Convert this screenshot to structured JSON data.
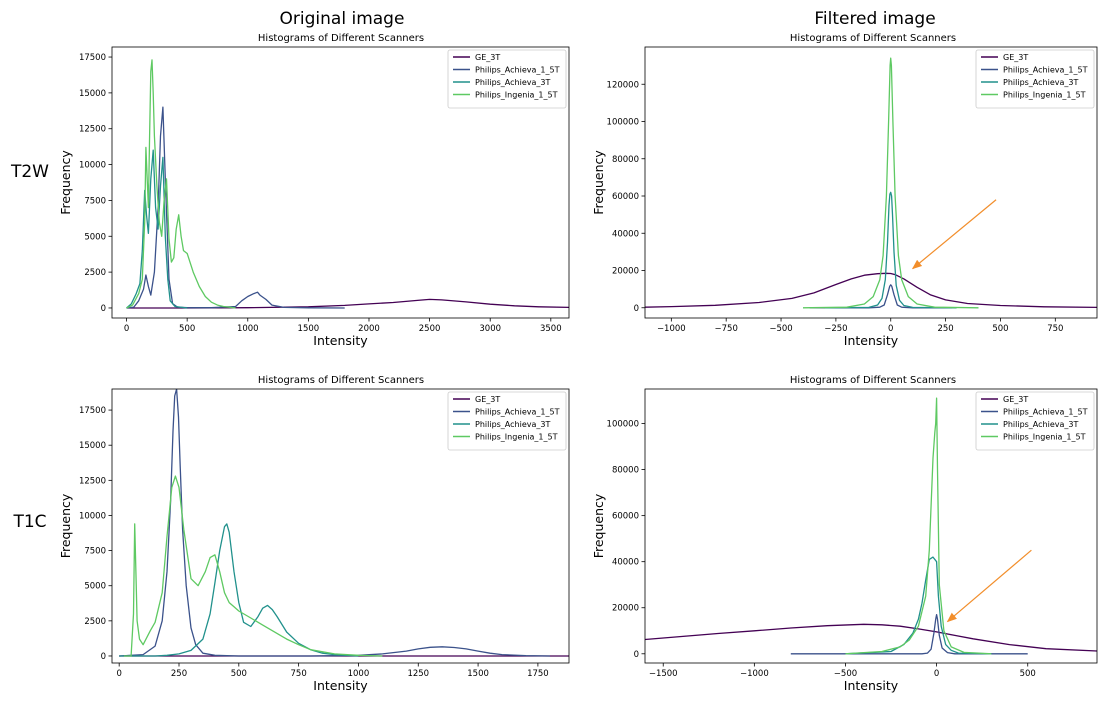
{
  "col_titles": [
    "Original image",
    "Filtered image"
  ],
  "row_labels": [
    "T2W",
    "T1C"
  ],
  "colors": {
    "GE_3T": "#440154",
    "Philips_Achieva_1_5T": "#3b528b",
    "Philips_Achieva_3T": "#21918c",
    "Philips_Ingenia_1_5T": "#5ec962",
    "arrow": "#f28e2b"
  },
  "chart_data": [
    {
      "type": "line",
      "title": "Histograms of Different Scanners",
      "xlabel": "Intensity",
      "ylabel": "Frequency",
      "xlim": [
        -120,
        3650
      ],
      "ylim": [
        -700,
        18200
      ],
      "xticks": [
        0,
        500,
        1000,
        1500,
        2000,
        2500,
        3000,
        3500
      ],
      "yticks": [
        0,
        2500,
        5000,
        7500,
        10000,
        12500,
        15000,
        17500
      ],
      "legend": [
        "GE_3T",
        "Philips_Achieva_1_5T",
        "Philips_Achieva_3T",
        "Philips_Ingenia_1_5T"
      ],
      "legend_position": "top-right",
      "series": [
        {
          "name": "GE_3T",
          "x": [
            0,
            500,
            1000,
            1500,
            1800,
            2000,
            2200,
            2400,
            2500,
            2600,
            2800,
            3000,
            3200,
            3400,
            3650
          ],
          "y": [
            0,
            0,
            20,
            80,
            180,
            280,
            380,
            530,
            600,
            560,
            420,
            260,
            150,
            80,
            40
          ]
        },
        {
          "name": "Philips_Achieva_1_5T",
          "x": [
            0,
            60,
            100,
            140,
            160,
            180,
            200,
            230,
            260,
            280,
            300,
            320,
            350,
            380,
            420,
            500,
            700,
            900,
            950,
            1000,
            1050,
            1080,
            1100,
            1150,
            1200,
            1300,
            1500,
            1800
          ],
          "y": [
            0,
            60,
            500,
            1300,
            2300,
            1500,
            900,
            2500,
            7000,
            12000,
            14000,
            9000,
            2000,
            300,
            60,
            20,
            20,
            100,
            500,
            800,
            1000,
            1100,
            900,
            600,
            200,
            40,
            10,
            0
          ]
        },
        {
          "name": "Philips_Achieva_3T",
          "x": [
            0,
            40,
            80,
            110,
            130,
            150,
            165,
            180,
            200,
            220,
            240,
            260,
            280,
            300,
            320,
            340,
            360,
            400,
            500
          ],
          "y": [
            0,
            300,
            1000,
            1700,
            4000,
            8200,
            6500,
            5200,
            9000,
            11000,
            7000,
            5500,
            8500,
            10500,
            5000,
            2000,
            500,
            100,
            0
          ]
        },
        {
          "name": "Philips_Ingenia_1_5T",
          "x": [
            0,
            50,
            100,
            130,
            150,
            160,
            170,
            180,
            190,
            200,
            210,
            220,
            230,
            250,
            270,
            290,
            310,
            330,
            350,
            370,
            390,
            410,
            430,
            450,
            470,
            500,
            550,
            600,
            650,
            700,
            750,
            800,
            850,
            900
          ],
          "y": [
            0,
            200,
            1000,
            2000,
            6000,
            11200,
            9000,
            7000,
            12000,
            16500,
            17300,
            15000,
            12000,
            8500,
            6000,
            5000,
            7500,
            9000,
            4800,
            3200,
            3500,
            5500,
            6500,
            5000,
            4000,
            3800,
            2500,
            1500,
            800,
            400,
            200,
            100,
            50,
            0
          ]
        }
      ]
    },
    {
      "type": "line",
      "title": "Histograms of Different Scanners",
      "xlabel": "Intensity",
      "ylabel": "Frequency",
      "xlim": [
        -1120,
        940
      ],
      "ylim": [
        -5500,
        140000
      ],
      "xticks": [
        -1000,
        -750,
        -500,
        -250,
        0,
        250,
        500,
        750
      ],
      "yticks": [
        0,
        20000,
        40000,
        60000,
        80000,
        100000,
        120000
      ],
      "legend": [
        "GE_3T",
        "Philips_Achieva_1_5T",
        "Philips_Achieva_3T",
        "Philips_Ingenia_1_5T"
      ],
      "legend_position": "top-right",
      "series": [
        {
          "name": "GE_3T",
          "x": [
            -1120,
            -1000,
            -800,
            -600,
            -450,
            -350,
            -250,
            -180,
            -120,
            -60,
            -20,
            0,
            20,
            60,
            120,
            180,
            250,
            350,
            500,
            700,
            940
          ],
          "y": [
            300,
            600,
            1300,
            2800,
            5000,
            8000,
            12500,
            15500,
            17500,
            18300,
            18500,
            18400,
            17800,
            15500,
            11000,
            7000,
            4200,
            2300,
            1200,
            500,
            200
          ]
        },
        {
          "name": "Philips_Achieva_1_5T",
          "x": [
            -370,
            -200,
            -100,
            -50,
            -30,
            -15,
            -5,
            0,
            5,
            15,
            30,
            50,
            100,
            200,
            280
          ],
          "y": [
            0,
            0,
            0,
            300,
            1500,
            7000,
            11500,
            12300,
            11500,
            7000,
            1500,
            300,
            0,
            0,
            0
          ]
        },
        {
          "name": "Philips_Achieva_3T",
          "x": [
            -300,
            -100,
            -60,
            -40,
            -25,
            -15,
            -8,
            -4,
            0,
            4,
            8,
            15,
            25,
            40,
            60,
            100,
            300
          ],
          "y": [
            0,
            200,
            1500,
            5000,
            15000,
            35000,
            55000,
            61000,
            62000,
            60000,
            50000,
            30000,
            12000,
            4000,
            1200,
            200,
            0
          ]
        },
        {
          "name": "Philips_Ingenia_1_5T",
          "x": [
            -400,
            -200,
            -120,
            -80,
            -50,
            -35,
            -20,
            -10,
            -3,
            0,
            3,
            10,
            20,
            35,
            50,
            80,
            120,
            200,
            400
          ],
          "y": [
            0,
            300,
            2000,
            6000,
            15000,
            28000,
            60000,
            100000,
            130000,
            134000,
            130000,
            100000,
            60000,
            28000,
            15000,
            6000,
            2000,
            300,
            0
          ]
        }
      ],
      "annotation": {
        "type": "arrow",
        "from": [
          480,
          58000
        ],
        "to": [
          100,
          21000
        ]
      }
    },
    {
      "type": "line",
      "title": "Histograms of Different Scanners",
      "xlabel": "Intensity",
      "ylabel": "Frequency",
      "xlim": [
        -30,
        1880
      ],
      "ylim": [
        -500,
        19000
      ],
      "xticks": [
        0,
        250,
        500,
        750,
        1000,
        1250,
        1500,
        1750
      ],
      "yticks": [
        0,
        2500,
        5000,
        7500,
        10000,
        12500,
        15000,
        17500
      ],
      "legend": [
        "GE_3T",
        "Philips_Achieva_1_5T",
        "Philips_Achieva_3T",
        "Philips_Ingenia_1_5T"
      ],
      "legend_position": "top-right",
      "series": [
        {
          "name": "GE_3T",
          "x": [
            0,
            1000,
            1880
          ],
          "y": [
            0,
            0,
            0
          ]
        },
        {
          "name": "Philips_Achieva_1_5T",
          "x": [
            0,
            100,
            150,
            180,
            200,
            215,
            225,
            232,
            240,
            248,
            255,
            265,
            280,
            300,
            320,
            350,
            400,
            500,
            800,
            1000,
            1100,
            1200,
            1250,
            1300,
            1350,
            1400,
            1450,
            1500,
            1550,
            1600,
            1700,
            1800
          ],
          "y": [
            0,
            100,
            700,
            2500,
            6000,
            11000,
            16000,
            18500,
            19000,
            17000,
            13500,
            9000,
            5000,
            2000,
            800,
            200,
            50,
            0,
            0,
            50,
            150,
            350,
            500,
            620,
            650,
            600,
            500,
            350,
            200,
            100,
            30,
            0
          ]
        },
        {
          "name": "Philips_Achieva_3T",
          "x": [
            0,
            150,
            200,
            250,
            300,
            350,
            380,
            400,
            420,
            440,
            450,
            460,
            480,
            500,
            520,
            550,
            580,
            600,
            620,
            640,
            660,
            700,
            750,
            800,
            850,
            900,
            950,
            1000
          ],
          "y": [
            0,
            0,
            50,
            150,
            400,
            1200,
            3000,
            5200,
            7500,
            9200,
            9400,
            8800,
            6000,
            3800,
            2400,
            2100,
            2800,
            3400,
            3600,
            3300,
            2800,
            1700,
            900,
            450,
            200,
            100,
            50,
            0
          ]
        },
        {
          "name": "Philips_Ingenia_1_5T",
          "x": [
            20,
            50,
            60,
            65,
            70,
            75,
            85,
            100,
            130,
            150,
            180,
            200,
            220,
            235,
            250,
            270,
            300,
            330,
            360,
            380,
            400,
            420,
            440,
            460,
            480,
            500,
            550,
            600,
            650,
            700,
            750,
            800,
            900,
            1000,
            1100
          ],
          "y": [
            0,
            0,
            3000,
            9400,
            6000,
            2500,
            1200,
            800,
            1800,
            2400,
            4500,
            8500,
            12000,
            12800,
            12000,
            9000,
            5500,
            5000,
            6000,
            7000,
            7200,
            6000,
            4500,
            3800,
            3500,
            3200,
            2700,
            2200,
            1700,
            1200,
            800,
            450,
            150,
            50,
            0
          ]
        }
      ]
    },
    {
      "type": "line",
      "title": "Histograms of Different Scanners",
      "xlabel": "Intensity",
      "ylabel": "Frequency",
      "xlim": [
        -1600,
        880
      ],
      "ylim": [
        -4000,
        115000
      ],
      "xticks": [
        -1500,
        -1000,
        -500,
        0,
        500
      ],
      "yticks": [
        0,
        20000,
        40000,
        60000,
        80000,
        100000
      ],
      "legend": [
        "GE_3T",
        "Philips_Achieva_1_5T",
        "Philips_Achieva_3T",
        "Philips_Ingenia_1_5T"
      ],
      "legend_position": "top-right",
      "series": [
        {
          "name": "GE_3T",
          "x": [
            -1600,
            -1400,
            -1200,
            -1000,
            -800,
            -600,
            -400,
            -300,
            -200,
            -100,
            0,
            100,
            200,
            400,
            600,
            880
          ],
          "y": [
            6200,
            7500,
            8800,
            10000,
            11200,
            12200,
            12800,
            12600,
            12000,
            10800,
            9500,
            8000,
            6500,
            4000,
            2200,
            1200
          ]
        },
        {
          "name": "Philips_Achieva_1_5T",
          "x": [
            -800,
            -200,
            -80,
            -50,
            -30,
            -15,
            -5,
            0,
            5,
            15,
            30,
            60,
            100,
            500
          ],
          "y": [
            0,
            0,
            0,
            300,
            2000,
            9000,
            15000,
            17000,
            15000,
            8000,
            2500,
            500,
            0,
            0
          ]
        },
        {
          "name": "Philips_Achieva_3T",
          "x": [
            -500,
            -250,
            -180,
            -130,
            -100,
            -80,
            -60,
            -40,
            -20,
            0,
            10,
            25,
            50,
            80,
            120,
            300
          ],
          "y": [
            0,
            1000,
            4000,
            9000,
            15000,
            22000,
            32000,
            41000,
            42000,
            40000,
            25000,
            12000,
            4000,
            1500,
            300,
            0
          ]
        },
        {
          "name": "Philips_Ingenia_1_5T",
          "x": [
            -500,
            -300,
            -200,
            -150,
            -100,
            -60,
            -40,
            -20,
            -10,
            -5,
            0,
            5,
            15,
            40,
            80,
            150,
            300
          ],
          "y": [
            0,
            1000,
            3000,
            6000,
            12000,
            25000,
            45000,
            85000,
            96000,
            100000,
            111000,
            80000,
            30000,
            10000,
            3000,
            600,
            0
          ]
        }
      ],
      "annotation": {
        "type": "arrow",
        "from": [
          520,
          45000
        ],
        "to": [
          60,
          14000
        ]
      }
    }
  ]
}
